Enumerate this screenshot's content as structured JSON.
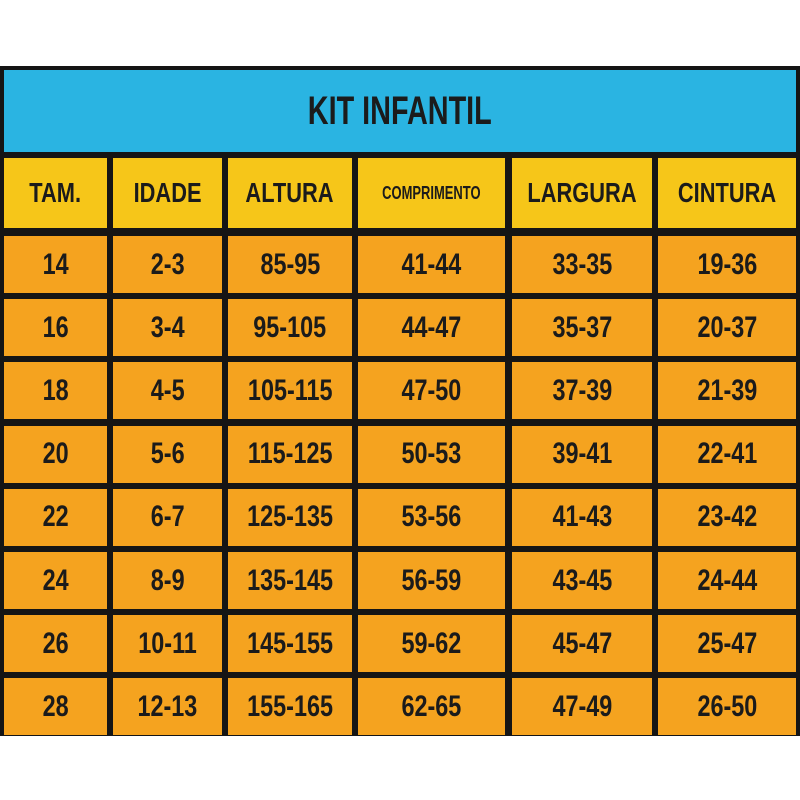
{
  "title": "KIT INFANTIL",
  "table": {
    "header": [
      "TAM.",
      "IDADE",
      "ALTURA",
      "COMPRIMENTO",
      "LARGURA",
      "CINTURA"
    ],
    "rows": [
      [
        "14",
        "2-3",
        "85-95",
        "41-44",
        "33-35",
        "19-36"
      ],
      [
        "16",
        "3-4",
        "95-105",
        "44-47",
        "35-37",
        "20-37"
      ],
      [
        "18",
        "4-5",
        "105-115",
        "47-50",
        "37-39",
        "21-39"
      ],
      [
        "20",
        "5-6",
        "115-125",
        "50-53",
        "39-41",
        "22-41"
      ],
      [
        "22",
        "6-7",
        "125-135",
        "53-56",
        "41-43",
        "23-42"
      ],
      [
        "24",
        "8-9",
        "135-145",
        "56-59",
        "43-45",
        "24-44"
      ],
      [
        "26",
        "10-11",
        "145-155",
        "59-62",
        "45-47",
        "25-47"
      ],
      [
        "28",
        "12-13",
        "155-165",
        "62-65",
        "47-49",
        "26-50"
      ]
    ]
  }
}
